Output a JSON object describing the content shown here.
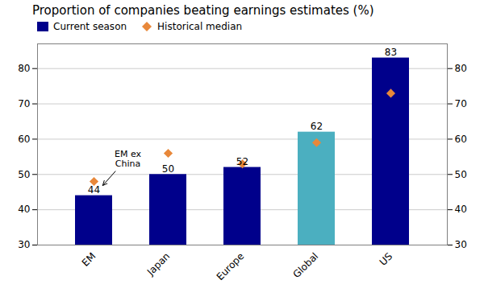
{
  "chart_data": {
    "type": "bar",
    "title": "Proportion of companies beating earnings estimates (%)",
    "categories": [
      "EM",
      "Japan",
      "Europe",
      "Global",
      "US"
    ],
    "series": [
      {
        "name": "Current season",
        "type": "bar",
        "colors": [
          "#00008B",
          "#00008B",
          "#00008B",
          "#4BAFC0",
          "#00008B"
        ],
        "values": [
          44,
          50,
          52,
          62,
          83
        ]
      },
      {
        "name": "Historical median",
        "type": "scatter",
        "marker": "diamond",
        "color": "#E8883A",
        "values": [
          48,
          56,
          53,
          59,
          73
        ]
      }
    ],
    "annotations": [
      "EM ex\nChina"
    ],
    "ylim": [
      30,
      87
    ],
    "yticks": [
      30,
      40,
      50,
      60,
      70,
      80
    ],
    "y2lim": [
      30,
      87
    ],
    "y2ticks": [
      30,
      40,
      50,
      60,
      70,
      80
    ],
    "grid": true,
    "legend": "upper left",
    "data_labels": true
  }
}
